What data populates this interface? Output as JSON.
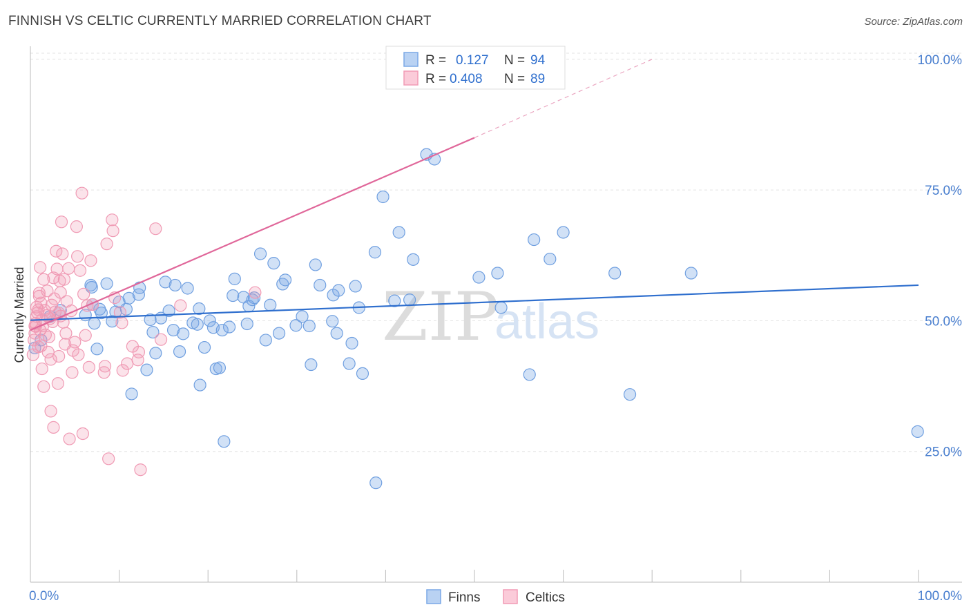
{
  "title": "FINNISH VS CELTIC CURRENTLY MARRIED CORRELATION CHART",
  "source": "Source: ZipAtlas.com",
  "watermark": {
    "zip": "ZIP",
    "atlas": "atlas"
  },
  "colors": {
    "finns": "#7aa8e6",
    "finns_line": "#2f6fce",
    "celtics": "#f29bb5",
    "celtics_line": "#e0679a",
    "axis_text": "#4a7fcf"
  },
  "legend": {
    "r_label": "R =",
    "n_label": "N =",
    "finns": {
      "r": "0.127",
      "n": "94"
    },
    "celtics": {
      "r": "0.408",
      "n": "89"
    }
  },
  "bottom_legend": {
    "finns": "Finns",
    "celtics": "Celtics"
  },
  "chart_data": {
    "type": "scatter",
    "title": "FINNISH VS CELTIC CURRENTLY MARRIED CORRELATION CHART",
    "xlabel": "",
    "ylabel": "Currently Married",
    "xlim": [
      0,
      100
    ],
    "ylim": [
      0,
      105
    ],
    "x_tick_labels": {
      "left": "0.0%",
      "right": "100.0%"
    },
    "y_ticks": [
      {
        "value": 25,
        "label": "25.0%"
      },
      {
        "value": 50,
        "label": "50.0%"
      },
      {
        "value": 75,
        "label": "75.0%"
      },
      {
        "value": 100,
        "label": "100.0%"
      }
    ],
    "series": [
      {
        "name": "Finns",
        "trend": {
          "x0": 0,
          "y0": 50.1,
          "x1": 100,
          "y1": 56.8
        },
        "points": [
          [
            6.8,
            56.8
          ],
          [
            6.9,
            56.4
          ],
          [
            7.0,
            53.1
          ],
          [
            6.2,
            51.1
          ],
          [
            7.2,
            49.5
          ],
          [
            7.5,
            44.6
          ],
          [
            7.8,
            52.2
          ],
          [
            8.0,
            51.5
          ],
          [
            8.6,
            57.1
          ],
          [
            9.2,
            49.9
          ],
          [
            9.6,
            51.7
          ],
          [
            10.0,
            53.6
          ],
          [
            10.8,
            52.2
          ],
          [
            11.1,
            54.3
          ],
          [
            11.4,
            36.0
          ],
          [
            12.2,
            55.0
          ],
          [
            12.3,
            56.3
          ],
          [
            13.1,
            40.6
          ],
          [
            13.5,
            50.2
          ],
          [
            13.8,
            47.8
          ],
          [
            14.1,
            43.8
          ],
          [
            14.7,
            50.5
          ],
          [
            15.2,
            57.4
          ],
          [
            15.6,
            51.9
          ],
          [
            16.1,
            48.2
          ],
          [
            16.3,
            56.8
          ],
          [
            16.8,
            44.1
          ],
          [
            17.2,
            47.5
          ],
          [
            17.7,
            56.2
          ],
          [
            18.3,
            49.6
          ],
          [
            18.8,
            49.3
          ],
          [
            19.0,
            52.3
          ],
          [
            19.1,
            37.7
          ],
          [
            19.6,
            44.9
          ],
          [
            20.2,
            50.0
          ],
          [
            20.6,
            48.7
          ],
          [
            20.9,
            40.8
          ],
          [
            21.3,
            41.0
          ],
          [
            21.6,
            48.2
          ],
          [
            21.8,
            26.9
          ],
          [
            22.4,
            48.8
          ],
          [
            22.8,
            54.8
          ],
          [
            23.0,
            58.0
          ],
          [
            24.0,
            54.5
          ],
          [
            24.4,
            49.4
          ],
          [
            24.6,
            52.8
          ],
          [
            25.0,
            54.0
          ],
          [
            25.2,
            54.4
          ],
          [
            25.9,
            62.8
          ],
          [
            26.5,
            46.3
          ],
          [
            27.0,
            53.0
          ],
          [
            27.4,
            61.0
          ],
          [
            28.0,
            47.6
          ],
          [
            28.4,
            57.0
          ],
          [
            28.7,
            57.8
          ],
          [
            29.9,
            49.1
          ],
          [
            30.6,
            50.8
          ],
          [
            31.4,
            49.0
          ],
          [
            31.6,
            41.6
          ],
          [
            32.1,
            60.7
          ],
          [
            32.6,
            56.8
          ],
          [
            34.0,
            49.9
          ],
          [
            34.1,
            54.9
          ],
          [
            34.5,
            47.6
          ],
          [
            34.7,
            55.8
          ],
          [
            35.9,
            41.8
          ],
          [
            36.2,
            45.7
          ],
          [
            36.6,
            56.6
          ],
          [
            37.0,
            52.5
          ],
          [
            37.4,
            39.9
          ],
          [
            38.8,
            63.1
          ],
          [
            38.9,
            19.0
          ],
          [
            39.7,
            73.7
          ],
          [
            41.0,
            53.8
          ],
          [
            41.5,
            66.9
          ],
          [
            42.7,
            54.0
          ],
          [
            43.1,
            61.7
          ],
          [
            44.6,
            81.8
          ],
          [
            45.5,
            80.9
          ],
          [
            50.5,
            58.3
          ],
          [
            52.6,
            59.1
          ],
          [
            53.0,
            52.5
          ],
          [
            56.2,
            39.7
          ],
          [
            56.7,
            65.5
          ],
          [
            58.5,
            61.8
          ],
          [
            60.0,
            66.9
          ],
          [
            65.8,
            59.1
          ],
          [
            67.5,
            35.9
          ],
          [
            74.4,
            59.1
          ],
          [
            99.9,
            28.8
          ],
          [
            0.5,
            44.8
          ],
          [
            1.2,
            46.3
          ],
          [
            2.2,
            50.8
          ],
          [
            3.4,
            52.0
          ]
        ]
      },
      {
        "name": "Celtics",
        "trend_solid": {
          "x0": 0,
          "y0": 48.2,
          "x1": 50.0,
          "y1": 85.0
        },
        "trend_dashed": {
          "x0": 50.0,
          "y0": 85.0,
          "x1": 70.0,
          "y1": 100.0
        },
        "points": [
          [
            0.3,
            43.5
          ],
          [
            0.4,
            46.3
          ],
          [
            0.5,
            47.6
          ],
          [
            0.6,
            48.9
          ],
          [
            0.6,
            49.5
          ],
          [
            0.7,
            50.8
          ],
          [
            0.8,
            51.5
          ],
          [
            0.9,
            52.1
          ],
          [
            1.0,
            54.7
          ],
          [
            1.0,
            55.3
          ],
          [
            1.1,
            48.2
          ],
          [
            1.2,
            53.4
          ],
          [
            1.3,
            50.2
          ],
          [
            1.4,
            49.0
          ],
          [
            1.5,
            57.9
          ],
          [
            1.6,
            52.0
          ],
          [
            1.7,
            47.3
          ],
          [
            1.8,
            51.0
          ],
          [
            1.9,
            55.7
          ],
          [
            2.0,
            44.0
          ],
          [
            2.1,
            46.9
          ],
          [
            2.2,
            50.4
          ],
          [
            2.3,
            42.6
          ],
          [
            2.4,
            53.0
          ],
          [
            2.5,
            49.8
          ],
          [
            2.6,
            58.2
          ],
          [
            2.7,
            54.2
          ],
          [
            2.8,
            51.7
          ],
          [
            2.9,
            63.3
          ],
          [
            3.0,
            59.9
          ],
          [
            3.1,
            38.0
          ],
          [
            3.2,
            43.2
          ],
          [
            3.3,
            57.6
          ],
          [
            3.4,
            50.9
          ],
          [
            3.5,
            68.9
          ],
          [
            3.6,
            62.8
          ],
          [
            3.7,
            49.7
          ],
          [
            3.8,
            57.9
          ],
          [
            3.9,
            45.5
          ],
          [
            4.0,
            47.6
          ],
          [
            4.1,
            53.7
          ],
          [
            4.3,
            60.0
          ],
          [
            4.4,
            27.4
          ],
          [
            4.6,
            51.9
          ],
          [
            4.7,
            40.1
          ],
          [
            4.8,
            44.3
          ],
          [
            5.0,
            45.9
          ],
          [
            5.2,
            68.0
          ],
          [
            5.3,
            62.3
          ],
          [
            5.4,
            43.5
          ],
          [
            5.6,
            59.6
          ],
          [
            5.8,
            74.4
          ],
          [
            5.9,
            28.4
          ],
          [
            6.0,
            55.1
          ],
          [
            6.2,
            47.2
          ],
          [
            6.4,
            52.9
          ],
          [
            6.6,
            41.1
          ],
          [
            6.8,
            61.5
          ],
          [
            7.0,
            53.1
          ],
          [
            8.3,
            40.1
          ],
          [
            8.4,
            41.3
          ],
          [
            8.6,
            64.7
          ],
          [
            8.8,
            23.6
          ],
          [
            9.2,
            69.3
          ],
          [
            9.3,
            67.2
          ],
          [
            9.5,
            54.4
          ],
          [
            10.1,
            51.6
          ],
          [
            10.3,
            49.6
          ],
          [
            10.4,
            40.5
          ],
          [
            10.9,
            41.8
          ],
          [
            11.5,
            45.1
          ],
          [
            12.1,
            42.5
          ],
          [
            12.2,
            44.0
          ],
          [
            12.4,
            21.5
          ],
          [
            14.1,
            67.6
          ],
          [
            14.7,
            46.4
          ],
          [
            16.9,
            52.9
          ],
          [
            25.3,
            55.4
          ],
          [
            1.1,
            60.2
          ],
          [
            1.3,
            40.8
          ],
          [
            2.3,
            32.7
          ],
          [
            2.6,
            29.6
          ],
          [
            3.2,
            51.5
          ],
          [
            3.4,
            55.4
          ],
          [
            0.9,
            45.0
          ],
          [
            1.5,
            37.4
          ],
          [
            0.7,
            52.6
          ],
          [
            0.5,
            49.0
          ],
          [
            1.2,
            45.2
          ]
        ]
      }
    ]
  }
}
